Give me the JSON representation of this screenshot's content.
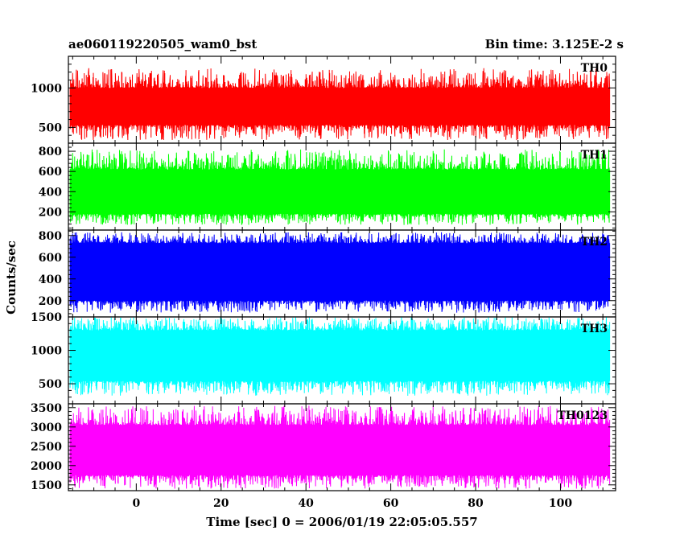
{
  "chart_data": {
    "type": "line",
    "title": "ae060119220505_wam0_bst",
    "subtitle": "Bin time: 3.125E-2 s",
    "xlabel": "Time [sec] 0 = 2006/01/19 22:05:05.557",
    "ylabel": "Counts/sec",
    "xlim": [
      -16,
      113
    ],
    "x_ticks": [
      0,
      20,
      40,
      60,
      80,
      100
    ],
    "x_data_range": [
      -15.6,
      111.6
    ],
    "bin_time_s": 0.03125,
    "grid": false,
    "panels": [
      {
        "name": "TH0",
        "color": "#ff0000",
        "ylim": [
          300,
          1400
        ],
        "y_ticks": [
          500,
          1000
        ],
        "envelope_low": 340,
        "envelope_high": 1250,
        "typical_low": 530,
        "typical_high": 1000
      },
      {
        "name": "TH1",
        "color": "#00ff00",
        "ylim": [
          20,
          880
        ],
        "y_ticks": [
          200,
          400,
          600,
          800
        ],
        "envelope_low": 70,
        "envelope_high": 820,
        "typical_low": 180,
        "typical_high": 620
      },
      {
        "name": "TH2",
        "color": "#0000ff",
        "ylim": [
          50,
          850
        ],
        "y_ticks": [
          200,
          400,
          600,
          800
        ],
        "envelope_low": 90,
        "envelope_high": 830,
        "typical_low": 200,
        "typical_high": 730
      },
      {
        "name": "TH3",
        "color": "#00ffff",
        "ylim": [
          200,
          1500
        ],
        "y_ticks": [
          500,
          1000,
          1500
        ],
        "envelope_low": 320,
        "envelope_high": 1500,
        "typical_low": 540,
        "typical_high": 1300
      },
      {
        "name": "TH0123",
        "color": "#ff00ff",
        "ylim": [
          1350,
          3600
        ],
        "y_ticks": [
          1500,
          2000,
          2500,
          3000,
          3500
        ],
        "envelope_low": 1400,
        "envelope_high": 3550,
        "typical_low": 1750,
        "typical_high": 3050
      }
    ]
  }
}
